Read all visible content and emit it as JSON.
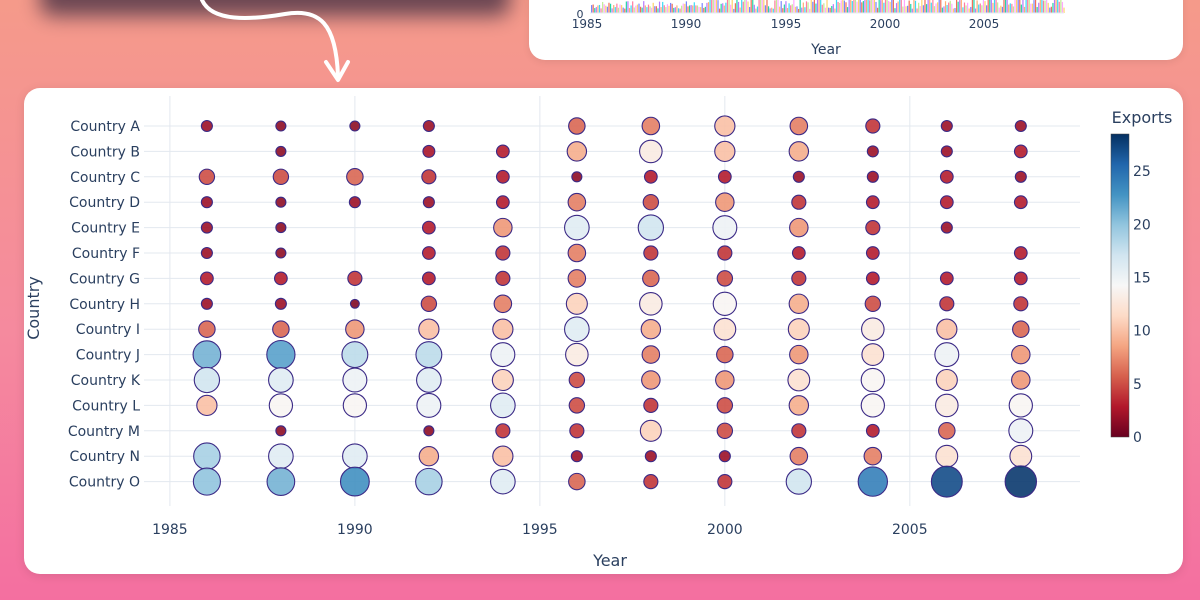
{
  "top_chart": {
    "x_ticks": [
      "1985",
      "1990",
      "1995",
      "2000",
      "2005"
    ],
    "xlabel": "Year",
    "y_zero_label": "0"
  },
  "chart_data": {
    "type": "scatter",
    "subtype": "bubble",
    "xlabel": "Year",
    "ylabel": "Country",
    "x_ticks": [
      1985,
      1990,
      1995,
      2000,
      2005
    ],
    "xlim": [
      1984.3,
      2009.6
    ],
    "colorbar": {
      "title": "Exports",
      "range": [
        0,
        28.5
      ],
      "ticks": [
        0,
        5,
        10,
        15,
        20,
        25
      ],
      "colorscale": "RdBu"
    },
    "size_and_color_encode": "Exports",
    "years": [
      1986,
      1988,
      1990,
      1992,
      1994,
      1996,
      1998,
      2000,
      2002,
      2004,
      2006,
      2008
    ],
    "countries": [
      "Country A",
      "Country B",
      "Country C",
      "Country D",
      "Country E",
      "Country F",
      "Country G",
      "Country H",
      "Country I",
      "Country J",
      "Country K",
      "Country L",
      "Country M",
      "Country N",
      "Country O"
    ],
    "values": [
      [
        2,
        1.5,
        1.5,
        2,
        null,
        6,
        7,
        10,
        7,
        4,
        2,
        2
      ],
      [
        null,
        1.5,
        null,
        2.5,
        3,
        9,
        13,
        10,
        9,
        2,
        2,
        3
      ],
      [
        5,
        5,
        6,
        4,
        3,
        1.5,
        3,
        3,
        2,
        2,
        3,
        2
      ],
      [
        2,
        1.5,
        2,
        2,
        3,
        7,
        5,
        8,
        4,
        3,
        3,
        3
      ],
      [
        2,
        1.5,
        null,
        3,
        8,
        16,
        17,
        15,
        8,
        4,
        2,
        null
      ],
      [
        2,
        1.5,
        null,
        3,
        4,
        7,
        4,
        4,
        3,
        3,
        null,
        3
      ],
      [
        3,
        3,
        4,
        3,
        4,
        7,
        6,
        5,
        4,
        3,
        3,
        3
      ],
      [
        2,
        2,
        1,
        5,
        7,
        11,
        13,
        14,
        9,
        5,
        4,
        4
      ],
      [
        6,
        6,
        8,
        10,
        10,
        16,
        9,
        12,
        11,
        13,
        10,
        6
      ],
      [
        21,
        22,
        18,
        18,
        15,
        13,
        7,
        6,
        8,
        12,
        15,
        8
      ],
      [
        17,
        16,
        15,
        16,
        11,
        5,
        8,
        8,
        12,
        14,
        11,
        8
      ],
      [
        10,
        14,
        14,
        15,
        16,
        5,
        4,
        5,
        9,
        14,
        13,
        14
      ],
      [
        null,
        1.5,
        null,
        1.5,
        4,
        4,
        11,
        5,
        4,
        3,
        6,
        15
      ],
      [
        19,
        16,
        16,
        9,
        10,
        2,
        2,
        2,
        7,
        7,
        12,
        12
      ],
      [
        20,
        21,
        23,
        19,
        16,
        6,
        4,
        4,
        17,
        24,
        27,
        28
      ]
    ]
  }
}
